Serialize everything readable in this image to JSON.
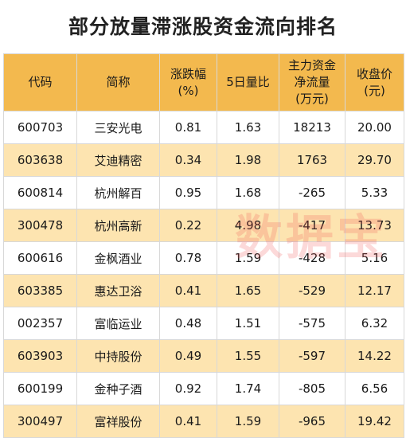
{
  "title": "部分放量滞涨股资金流向排名",
  "header": {
    "code": "代码",
    "name": "简称",
    "change_line1": "涨跌幅",
    "change_line2": "(%)",
    "vol_ratio": "5日量比",
    "flow_line1": "主力资金",
    "flow_line2": "净流量",
    "flow_line3": "(万元)",
    "close_line1": "收盘价",
    "close_line2": "(元)"
  },
  "rows": [
    {
      "code": "600703",
      "name": "三安光电",
      "change": "0.81",
      "vol_ratio": "1.63",
      "flow": "18213",
      "close": "20.00"
    },
    {
      "code": "603638",
      "name": "艾迪精密",
      "change": "0.34",
      "vol_ratio": "1.98",
      "flow": "1763",
      "close": "29.70"
    },
    {
      "code": "600814",
      "name": "杭州解百",
      "change": "0.95",
      "vol_ratio": "1.68",
      "flow": "-265",
      "close": "5.33"
    },
    {
      "code": "300478",
      "name": "杭州高新",
      "change": "0.22",
      "vol_ratio": "4.98",
      "flow": "-417",
      "close": "13.73"
    },
    {
      "code": "600616",
      "name": "金枫酒业",
      "change": "0.78",
      "vol_ratio": "1.59",
      "flow": "-428",
      "close": "5.16"
    },
    {
      "code": "603385",
      "name": "惠达卫浴",
      "change": "0.41",
      "vol_ratio": "1.65",
      "flow": "-529",
      "close": "12.17"
    },
    {
      "code": "002357",
      "name": "富临运业",
      "change": "0.48",
      "vol_ratio": "1.51",
      "flow": "-575",
      "close": "6.32"
    },
    {
      "code": "603903",
      "name": "中持股份",
      "change": "0.49",
      "vol_ratio": "1.55",
      "flow": "-597",
      "close": "14.22"
    },
    {
      "code": "600199",
      "name": "金种子酒",
      "change": "0.92",
      "vol_ratio": "1.74",
      "flow": "-805",
      "close": "6.56"
    },
    {
      "code": "300497",
      "name": "富祥股份",
      "change": "0.41",
      "vol_ratio": "1.59",
      "flow": "-965",
      "close": "19.42"
    }
  ],
  "watermark": "数据宝",
  "colors": {
    "header_bg": "#f3b94e",
    "stripe_bg": "#fde4b0",
    "watermark": "#f05050"
  }
}
